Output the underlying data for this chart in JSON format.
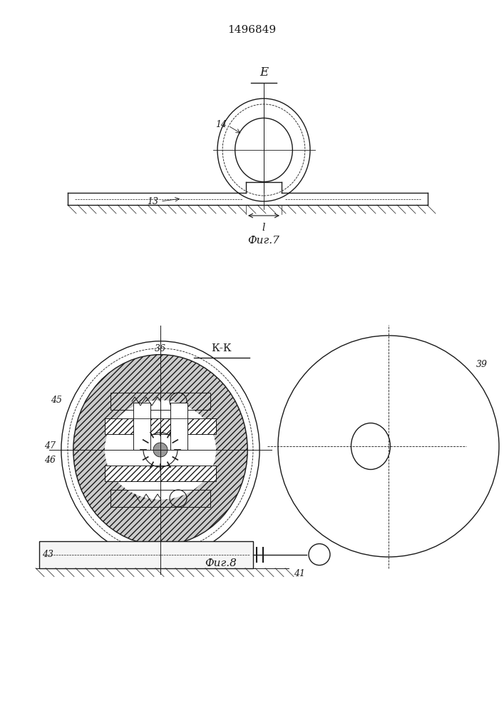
{
  "title": "1496849",
  "bg_color": "#ffffff",
  "line_color": "#1a1a1a",
  "fig7_label": "Фиг.7",
  "fig8_label": "Фиг.8",
  "section_E": "E",
  "section_KK": "К-К"
}
